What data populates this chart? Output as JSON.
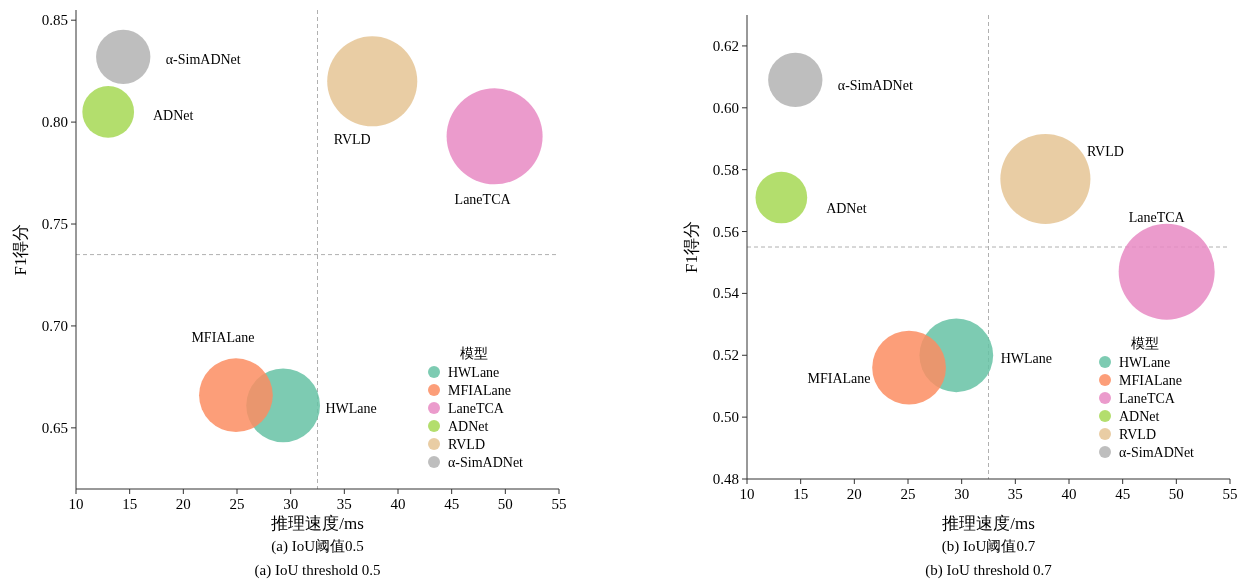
{
  "chart_data": [
    {
      "type": "bubble",
      "xlabel": "推理速度/ms",
      "ylabel": "F1得分",
      "legend_title": "模型",
      "legend": "bottom right",
      "grid": false,
      "relative": false,
      "xlim": [
        10,
        55
      ],
      "xticks": [
        10,
        15,
        20,
        25,
        30,
        35,
        40,
        45,
        50,
        55
      ],
      "ylim": [
        0.62,
        0.855
      ],
      "yticks": [
        0.65,
        {
          "value": 0.7,
          "label": "0.70"
        },
        0.75,
        {
          "value": 0.8,
          "label": "0.80"
        },
        0.85
      ],
      "series": [
        {
          "name": "HWLane",
          "color": "#66c2a5",
          "x": [
            29.3
          ],
          "values": [
            0.661
          ],
          "sizes": [
            0.59
          ]
        },
        {
          "name": "MFIALane",
          "color": "#fc8d62",
          "x": [
            24.9
          ],
          "values": [
            0.666
          ],
          "sizes": [
            0.59
          ]
        },
        {
          "name": "LaneTCA",
          "color": "#e78ac3",
          "x": [
            49.0
          ],
          "values": [
            0.793
          ],
          "sizes": [
            1
          ]
        },
        {
          "name": "ADNet",
          "color": "#a6d854",
          "x": [
            13.0
          ],
          "values": [
            0.805
          ],
          "sizes": [
            0.29
          ]
        },
        {
          "name": "RVLD",
          "color": "#e5c494",
          "x": [
            37.6
          ],
          "values": [
            0.82
          ],
          "sizes": [
            0.88
          ]
        },
        {
          "name": "α-SimADNet",
          "color": "#b3b3b3",
          "x": [
            14.4
          ],
          "values": [
            0.832
          ],
          "sizes": [
            0.32
          ]
        }
      ],
      "ref_lines": [
        {
          "axis": "x",
          "value": 32.5,
          "color": "#b0b0b0",
          "line_style": "dashed"
        },
        {
          "axis": "y",
          "value": 0.735,
          "color": "#b0b0b0",
          "line_style": "dashed"
        }
      ],
      "annotations": [
        "(a) IoU阈值0.5",
        "(a) IoU threshold 0.5"
      ]
    },
    {
      "type": "bubble",
      "xlabel": "推理速度/ms",
      "ylabel": "F1得分",
      "legend_title": "模型",
      "legend": "bottom right",
      "grid": false,
      "relative": false,
      "xlim": [
        10,
        55
      ],
      "xticks": [
        10,
        15,
        20,
        25,
        30,
        35,
        40,
        45,
        50,
        55
      ],
      "ylim": [
        0.48,
        0.63
      ],
      "yticks": [
        0.48,
        {
          "value": 0.5,
          "label": "0.50"
        },
        0.52,
        0.54,
        0.56,
        0.58,
        {
          "value": 0.6,
          "label": "0.60"
        },
        0.62
      ],
      "series": [
        {
          "name": "HWLane",
          "color": "#66c2a5",
          "x": [
            29.5
          ],
          "values": [
            0.52
          ],
          "sizes": [
            0.59
          ]
        },
        {
          "name": "MFIALane",
          "color": "#fc8d62",
          "x": [
            25.1
          ],
          "values": [
            0.516
          ],
          "sizes": [
            0.59
          ]
        },
        {
          "name": "LaneTCA",
          "color": "#e78ac3",
          "x": [
            49.1
          ],
          "values": [
            0.547
          ],
          "sizes": [
            1
          ]
        },
        {
          "name": "ADNet",
          "color": "#a6d854",
          "x": [
            13.2
          ],
          "values": [
            0.571
          ],
          "sizes": [
            0.29
          ]
        },
        {
          "name": "RVLD",
          "color": "#e5c494",
          "x": [
            37.8
          ],
          "values": [
            0.577
          ],
          "sizes": [
            0.88
          ]
        },
        {
          "name": "α-SimADNet",
          "color": "#b3b3b3",
          "x": [
            14.5
          ],
          "values": [
            0.609
          ],
          "sizes": [
            0.32
          ]
        }
      ],
      "ref_lines": [
        {
          "axis": "x",
          "value": 32.5,
          "color": "#b0b0b0",
          "line_style": "dashed"
        },
        {
          "axis": "y",
          "value": 0.555,
          "color": "#b0b0b0",
          "line_style": "dashed"
        }
      ],
      "annotations": [
        "(b) IoU阈值0.7",
        "(b) IoU threshold 0.7"
      ]
    }
  ]
}
